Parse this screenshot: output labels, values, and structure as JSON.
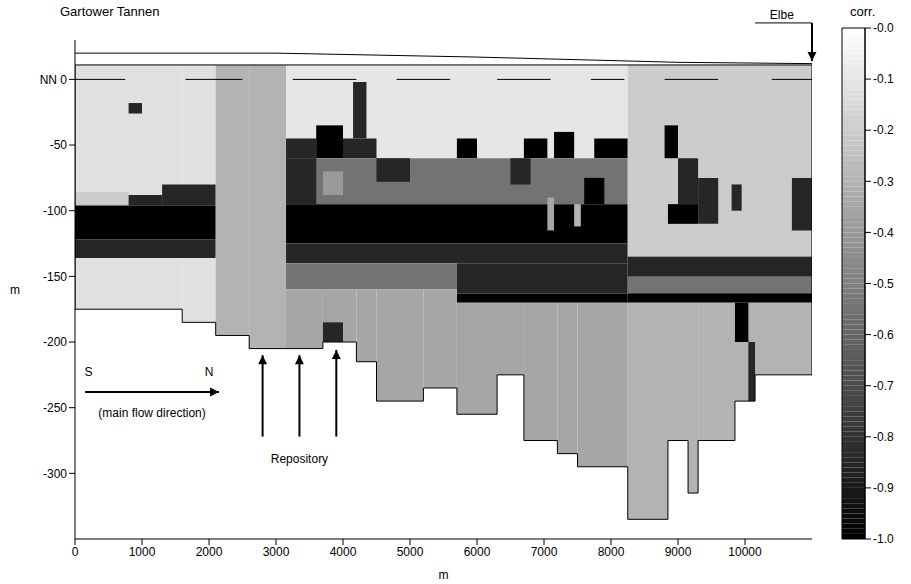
{
  "chart_data": {
    "type": "heatmap",
    "title": "Gartower Tannen",
    "xlabel": "m",
    "ylabel": "m",
    "xlim": [
      0,
      11000
    ],
    "xticks": [
      0,
      1000,
      2000,
      3000,
      4000,
      5000,
      6000,
      7000,
      8000,
      9000,
      10000
    ],
    "ylim": [
      -350,
      30
    ],
    "yticks": [
      -300,
      -250,
      -200,
      -150,
      -100,
      -50,
      {
        "value": 0,
        "label": "NN 0"
      }
    ],
    "cells": [
      [
        0,
        1600,
        -175,
        11,
        -0.12
      ],
      [
        1600,
        2100,
        -185,
        11,
        -0.12
      ],
      [
        800,
        1000,
        -26,
        -18,
        -0.85
      ],
      [
        0,
        800,
        -96,
        -86,
        -0.2
      ],
      [
        800,
        1300,
        -96,
        -88,
        -0.85
      ],
      [
        1300,
        2100,
        -96,
        -80,
        -0.85
      ],
      [
        0,
        2100,
        -122,
        -96,
        -1.0
      ],
      [
        0,
        2100,
        -136,
        -122,
        -0.85
      ],
      [
        2100,
        2600,
        -195,
        11,
        -0.3
      ],
      [
        2600,
        3150,
        -205,
        11,
        -0.3
      ],
      [
        3150,
        8250,
        -60,
        11,
        -0.1
      ],
      [
        4150,
        4350,
        -45,
        -2,
        -0.85
      ],
      [
        3150,
        3600,
        -60,
        -45,
        -0.85
      ],
      [
        3600,
        4000,
        -60,
        -35,
        -1.0
      ],
      [
        4000,
        4500,
        -60,
        -45,
        -0.85
      ],
      [
        5700,
        6000,
        -60,
        -45,
        -1.0
      ],
      [
        6700,
        7050,
        -60,
        -45,
        -1.0
      ],
      [
        7150,
        7450,
        -60,
        -40,
        -1.0
      ],
      [
        7750,
        8250,
        -60,
        -45,
        -1.0
      ],
      [
        3150,
        8250,
        -95,
        -60,
        -0.55
      ],
      [
        3150,
        3600,
        -95,
        -60,
        -0.85
      ],
      [
        3700,
        4000,
        -88,
        -70,
        -0.4
      ],
      [
        4500,
        5000,
        -78,
        -60,
        -0.85
      ],
      [
        6500,
        6800,
        -80,
        -60,
        -0.85
      ],
      [
        7600,
        7900,
        -95,
        -75,
        -1.0
      ],
      [
        3150,
        8250,
        -125,
        -95,
        -1.0
      ],
      [
        7050,
        7150,
        -115,
        -90,
        -0.35
      ],
      [
        7450,
        7550,
        -112,
        -95,
        -0.3
      ],
      [
        3150,
        8250,
        -140,
        -125,
        -0.85
      ],
      [
        3150,
        5700,
        -160,
        -140,
        -0.55
      ],
      [
        5700,
        8250,
        -163,
        -140,
        -0.85
      ],
      [
        5700,
        8250,
        -170,
        -163,
        -1.0
      ],
      [
        3150,
        3700,
        -205,
        -160,
        -0.35
      ],
      [
        3700,
        4200,
        -200,
        -160,
        -0.35
      ],
      [
        3700,
        4000,
        -200,
        -185,
        -0.85
      ],
      [
        4200,
        4500,
        -215,
        -160,
        -0.35
      ],
      [
        4500,
        5200,
        -245,
        -160,
        -0.35
      ],
      [
        5200,
        5700,
        -235,
        -160,
        -0.35
      ],
      [
        5700,
        6300,
        -255,
        -170,
        -0.35
      ],
      [
        6300,
        6700,
        -225,
        -170,
        -0.35
      ],
      [
        6700,
        7200,
        -275,
        -170,
        -0.35
      ],
      [
        7200,
        7500,
        -285,
        -170,
        -0.35
      ],
      [
        7500,
        8250,
        -295,
        -170,
        -0.35
      ],
      [
        8250,
        11000,
        -135,
        11,
        -0.2
      ],
      [
        8800,
        9000,
        -60,
        -35,
        -1.0
      ],
      [
        9000,
        9300,
        -95,
        -60,
        -0.85
      ],
      [
        8850,
        9300,
        -110,
        -95,
        -1.0
      ],
      [
        9300,
        9600,
        -110,
        -75,
        -0.85
      ],
      [
        9800,
        9950,
        -100,
        -80,
        -0.85
      ],
      [
        10700,
        11000,
        -115,
        -75,
        -0.85
      ],
      [
        8250,
        11000,
        -165,
        -135,
        -0.55
      ],
      [
        8250,
        11000,
        -150,
        -135,
        -0.85
      ],
      [
        8250,
        11000,
        -170,
        -163,
        -1.0
      ],
      [
        8250,
        8850,
        -335,
        -170,
        -0.3
      ],
      [
        8850,
        9150,
        -275,
        -170,
        -0.3
      ],
      [
        9150,
        9300,
        -315,
        -170,
        -0.3
      ],
      [
        9300,
        9850,
        -275,
        -170,
        -0.3
      ],
      [
        9850,
        10150,
        -245,
        -170,
        -0.3
      ],
      [
        10150,
        11000,
        -225,
        -170,
        -0.3
      ],
      [
        9850,
        10050,
        -200,
        -170,
        -1.0
      ],
      [
        10050,
        10150,
        -245,
        -200,
        -0.85
      ]
    ],
    "outline": {
      "x": [
        0,
        0,
        1600,
        1600,
        2100,
        2100,
        2600,
        2600,
        3700,
        3700,
        4200,
        4200,
        4500,
        4500,
        5200,
        5200,
        5700,
        5700,
        6300,
        6300,
        6700,
        6700,
        7200,
        7200,
        7500,
        7500,
        8250,
        8250,
        8850,
        8850,
        9150,
        9150,
        9300,
        9300,
        9850,
        9850,
        10150,
        10150,
        11000,
        11000,
        0
      ],
      "y": [
        11,
        -175,
        -175,
        -185,
        -185,
        -195,
        -195,
        -205,
        -205,
        -200,
        -200,
        -215,
        -215,
        -245,
        -245,
        -235,
        -235,
        -255,
        -255,
        -225,
        -225,
        -275,
        -275,
        -285,
        -285,
        -295,
        -295,
        -335,
        -335,
        -275,
        -275,
        -315,
        -315,
        -275,
        -275,
        -245,
        -245,
        -225,
        -225,
        11,
        11
      ]
    },
    "surface": {
      "x": [
        0,
        3000,
        6000,
        9000,
        11000
      ],
      "y": [
        20,
        20,
        17,
        13,
        12
      ]
    },
    "water_level": {
      "y": 0,
      "segments": [
        [
          0,
          750
        ],
        [
          1650,
          2500
        ],
        [
          3250,
          4200
        ],
        [
          4800,
          5600
        ],
        [
          6300,
          7100
        ],
        [
          7700,
          8200
        ],
        [
          8800,
          9600
        ],
        [
          10400,
          11000
        ]
      ]
    },
    "lines": [
      {
        "from": [
          10150,
          43
        ],
        "to": [
          11000,
          43
        ]
      }
    ],
    "arrows": [
      {
        "from": [
          11000,
          43
        ],
        "to": [
          11000,
          14
        ]
      },
      {
        "from": [
          150,
          -238
        ],
        "to": [
          2150,
          -238
        ]
      },
      {
        "from": [
          2800,
          -272
        ],
        "to": [
          2800,
          -210
        ]
      },
      {
        "from": [
          3350,
          -272
        ],
        "to": [
          3350,
          -210
        ]
      },
      {
        "from": [
          3900,
          -272
        ],
        "to": [
          3900,
          -206
        ]
      }
    ],
    "annotations": [
      {
        "text": "Elbe",
        "x": 10550,
        "y": 46
      },
      {
        "text": "S",
        "x": 200,
        "y": -226
      },
      {
        "text": "N",
        "x": 2000,
        "y": -226
      },
      {
        "text": "(main flow direction)",
        "x": 1150,
        "y": -257
      },
      {
        "text": "Repository",
        "x": 3350,
        "y": -292
      }
    ],
    "colorbar": {
      "title": "corr.",
      "range": [
        -1,
        0
      ],
      "ticks": [
        {
          "value": 0,
          "label": "-0.0"
        },
        {
          "value": -0.1,
          "label": "-0.1"
        },
        {
          "value": -0.2,
          "label": "-0.2"
        },
        {
          "value": -0.3,
          "label": "-0.3"
        },
        {
          "value": -0.4,
          "label": "-0.4"
        },
        {
          "value": -0.5,
          "label": "-0.5"
        },
        {
          "value": -0.6,
          "label": "-0.6"
        },
        {
          "value": -0.7,
          "label": "-0.7"
        },
        {
          "value": -0.8,
          "label": "-0.8"
        },
        {
          "value": -0.9,
          "label": "-0.9"
        },
        {
          "value": -1,
          "label": "-1.0"
        }
      ]
    }
  }
}
